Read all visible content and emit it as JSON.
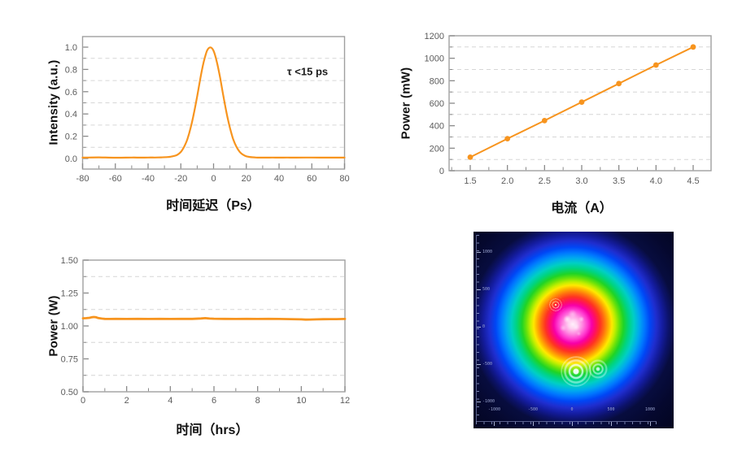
{
  "colors": {
    "accent": "#F7941E",
    "axis_frame": "#9F9F9F",
    "tick": "#8A8A8A",
    "tick_label": "#5C5C5C",
    "grid": "#D6D6D6",
    "title_text": "#111111",
    "beam_background": "#020316"
  },
  "chart_data": [
    {
      "id": "autocorrelation",
      "type": "line",
      "title": "",
      "xlabel": "时间延迟（Ps）",
      "ylabel": "Intensity (a.u.)",
      "annotation": "τ <15 ps",
      "xlim": [
        -80,
        80
      ],
      "ylim": [
        0,
        1.0
      ],
      "grid": "dashed-minor-horizontal",
      "xticks": [
        -80,
        -60,
        -40,
        -20,
        0,
        20,
        40,
        60,
        80
      ],
      "xtick_labels": [
        "-80",
        "-60",
        "-40",
        "-20",
        "0",
        "20",
        "40",
        "60",
        "80"
      ],
      "xminor": [
        -70,
        -50,
        -30,
        -10,
        10,
        30,
        50,
        70
      ],
      "yticks": [
        0,
        0.2,
        0.4,
        0.6,
        0.8,
        1.0
      ],
      "ytick_labels": [
        "0.0",
        "0.2",
        "0.4",
        "0.6",
        "0.8",
        "1.0"
      ],
      "yminor_grid": [
        0.1,
        0.3,
        0.5,
        0.7,
        0.9
      ],
      "line_color": "#F7941E",
      "x": [
        -80,
        -70,
        -60,
        -50,
        -45,
        -40,
        -36,
        -32,
        -28,
        -26,
        -24,
        -22,
        -20,
        -18,
        -16,
        -14,
        -12,
        -10,
        -8,
        -6,
        -4,
        -2,
        0,
        2,
        4,
        6,
        8,
        10,
        12,
        14,
        16,
        18,
        20,
        22,
        24,
        26,
        28,
        32,
        36,
        40,
        45,
        50,
        60,
        70,
        80
      ],
      "y": [
        0.008,
        0.01,
        0.007,
        0.009,
        0.008,
        0.009,
        0.009,
        0.01,
        0.013,
        0.017,
        0.023,
        0.034,
        0.059,
        0.105,
        0.173,
        0.276,
        0.405,
        0.56,
        0.725,
        0.868,
        0.967,
        0.998,
        0.967,
        0.868,
        0.725,
        0.56,
        0.405,
        0.276,
        0.173,
        0.104,
        0.059,
        0.034,
        0.02,
        0.014,
        0.011,
        0.009,
        0.008,
        0.008,
        0.009,
        0.008,
        0.009,
        0.008,
        0.009,
        0.008,
        0.008
      ]
    },
    {
      "id": "power-vs-current",
      "type": "line",
      "markers": true,
      "title": "",
      "xlabel": "电流（A）",
      "ylabel": "Power (mW)",
      "xlim": [
        1.2,
        4.75
      ],
      "ylim": [
        0,
        1200
      ],
      "grid": "dashed-minor-horizontal",
      "xticks": [
        1.5,
        2.0,
        2.5,
        3.0,
        3.5,
        4.0,
        4.5
      ],
      "xtick_labels": [
        "1.5",
        "2.0",
        "2.5",
        "3.0",
        "3.5",
        "4.0",
        "4.5"
      ],
      "xminor": [
        1.25,
        1.75,
        2.25,
        2.75,
        3.25,
        3.75,
        4.25
      ],
      "yticks": [
        0,
        200,
        400,
        600,
        800,
        1000,
        1200
      ],
      "ytick_labels": [
        "0",
        "200",
        "400",
        "600",
        "800",
        "1000",
        "1200"
      ],
      "yminor_grid": [
        100,
        300,
        500,
        700,
        900,
        1100
      ],
      "line_color": "#F7941E",
      "x": [
        1.5,
        2.0,
        2.5,
        3.0,
        3.5,
        4.0,
        4.5
      ],
      "y": [
        120,
        285,
        445,
        610,
        775,
        940,
        1100
      ]
    },
    {
      "id": "power-stability",
      "type": "line",
      "title": "",
      "xlabel": "时间（hrs）",
      "ylabel": "Power (W)",
      "xlim": [
        0,
        12
      ],
      "ylim": [
        0.5,
        1.5
      ],
      "grid": "dashed-minor-horizontal",
      "xticks": [
        0,
        2,
        4,
        6,
        8,
        10,
        12
      ],
      "xtick_labels": [
        "0",
        "2",
        "4",
        "6",
        "8",
        "10",
        "12"
      ],
      "xminor": [
        1,
        3,
        5,
        7,
        9,
        11
      ],
      "yticks": [
        0.5,
        0.75,
        1.0,
        1.25,
        1.5
      ],
      "ytick_labels": [
        "0.50",
        "0.75",
        "1.00",
        "1.25",
        "1.50"
      ],
      "yminor_grid": [
        0.625,
        0.875,
        1.125,
        1.375
      ],
      "line_color": "#F7941E",
      "x": [
        0,
        0.15,
        0.3,
        0.4,
        0.5,
        0.6,
        0.7,
        0.85,
        1,
        1.25,
        1.5,
        2,
        2.5,
        3,
        3.5,
        4,
        4.5,
        5,
        5.4,
        5.6,
        5.8,
        6,
        6.5,
        7,
        7.5,
        8,
        8.5,
        9,
        9.5,
        10,
        10.2,
        10.4,
        10.7,
        11,
        11.3,
        11.6,
        12
      ],
      "y": [
        1.058,
        1.059,
        1.062,
        1.066,
        1.068,
        1.066,
        1.06,
        1.056,
        1.054,
        1.053,
        1.054,
        1.053,
        1.054,
        1.053,
        1.054,
        1.053,
        1.054,
        1.054,
        1.057,
        1.059,
        1.056,
        1.055,
        1.054,
        1.053,
        1.054,
        1.053,
        1.054,
        1.053,
        1.052,
        1.05,
        1.048,
        1.049,
        1.05,
        1.051,
        1.052,
        1.052,
        1.053
      ]
    },
    {
      "id": "beam-profile",
      "type": "heatmap",
      "title": "",
      "description": "Laser output beam profile, circular Gaussian spot, jet-style colormap with pink-white core, interference ring artifacts",
      "xtick_labels": [
        "-1000",
        "-500",
        "0",
        "500",
        "1000"
      ],
      "ytick_labels": [
        "1000",
        "500",
        "0",
        "-500",
        "-1000"
      ],
      "colormap": [
        "#020316",
        "#0c1268",
        "#0046f5",
        "#00a8ef",
        "#00d47e",
        "#1fd426",
        "#c4ef00",
        "#ffe900",
        "#ff6f10",
        "#ff3322",
        "#f700a8",
        "#ff8ce2",
        "#fff0fb"
      ]
    }
  ]
}
